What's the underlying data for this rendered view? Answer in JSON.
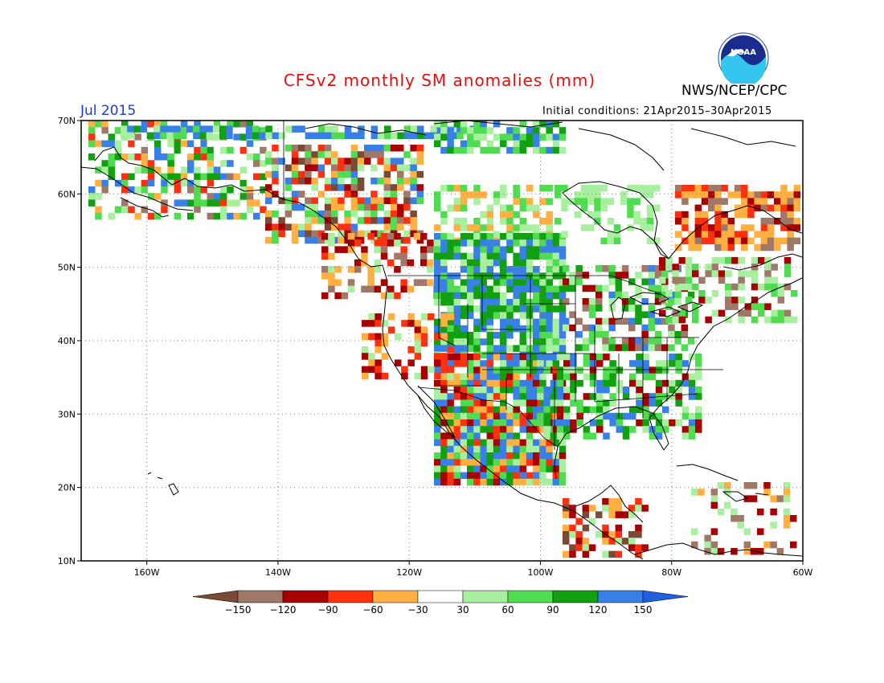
{
  "header": {
    "title": "CFSv2 monthly SM anomalies (mm)",
    "agency": "NWS/NCEP/CPC",
    "month": "Jul 2015",
    "initial_conditions": "Initial conditions: 21Apr2015–30Apr2015",
    "logo_text": "NOAA"
  },
  "axes": {
    "lat_labels": [
      "70N",
      "60N",
      "50N",
      "40N",
      "30N",
      "20N",
      "10N"
    ],
    "lon_labels": [
      "160W",
      "140W",
      "120W",
      "100W",
      "80W",
      "60W"
    ]
  },
  "colorbar": {
    "labels": [
      "-150",
      "-120",
      "-90",
      "-60",
      "-30",
      "30",
      "60",
      "90",
      "120",
      "150"
    ],
    "colors": [
      "#7a4a35",
      "#a07868",
      "#a80000",
      "#ff3010",
      "#ffb040",
      "#ffffff",
      "#a8f0a0",
      "#50dc50",
      "#10a010",
      "#3880e8",
      "#2060e0"
    ]
  },
  "map": {
    "projection": "cylindrical equidistant",
    "lon_range": [
      -170,
      -60
    ],
    "lat_range": [
      10,
      70
    ],
    "grid": "dotted every 20 deg lon, 10 deg lat"
  }
}
